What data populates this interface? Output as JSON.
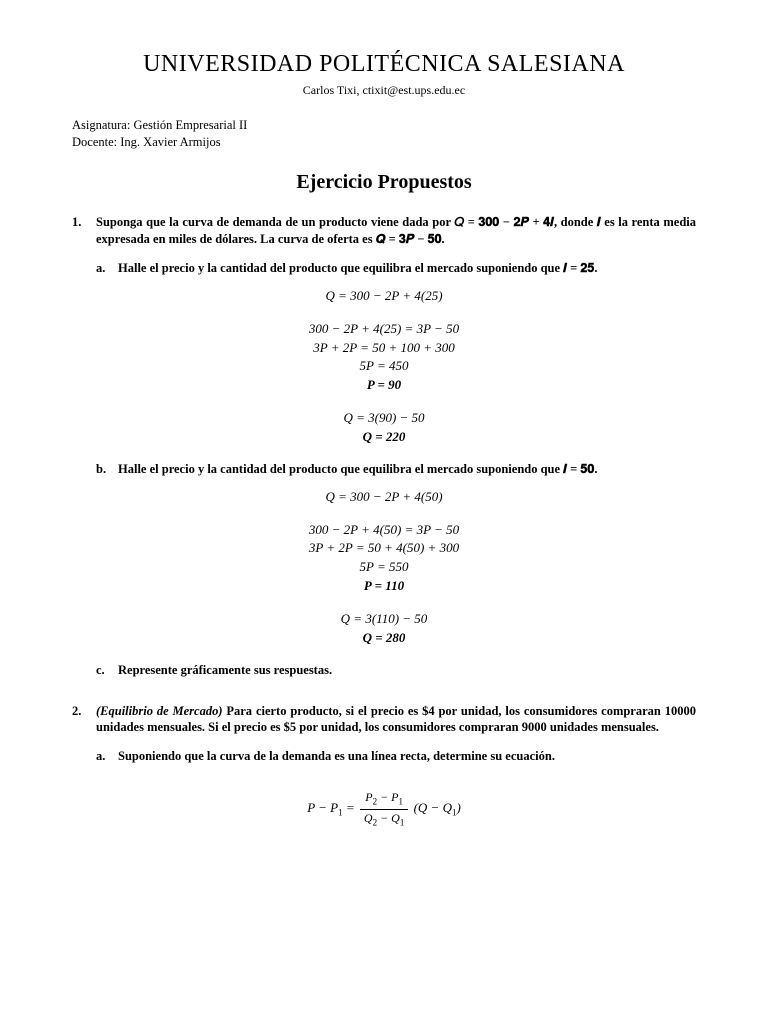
{
  "header": {
    "university": "UNIVERSIDAD POLITÉCNICA SALESIANA",
    "author": "Carlos Tixi, ctixit@est.ups.edu.ec",
    "subject_label": "Asignatura:",
    "subject": "Gestión Empresarial II",
    "teacher_label": "Docente:",
    "teacher": "Ing. Xavier Armijos"
  },
  "title": "Ejercicio Propuestos",
  "problems": [
    {
      "number": "1.",
      "text_html": "Suponga que la curva de demanda de un producto viene dada por 𝑄 = 𝟑𝟎𝟎 − 𝟐𝑷 + 𝟒𝑰, donde 𝑰 es la renta media expresada en miles de dólares. La curva de oferta es 𝑸 = 𝟑𝑷 − 𝟓𝟎.",
      "subs": [
        {
          "letter": "a.",
          "text_html": "Halle el precio y la cantidad del producto que equilibra el mercado suponiendo que 𝑰 = 𝟐𝟓.",
          "math": [
            [
              "Q = 300 − 2P + 4(25)"
            ],
            [
              "300 − 2P + 4(25) = 3P − 50",
              "3P + 2P = 50 + 100 + 300",
              "5P = 450",
              "<b>P = 90</b>"
            ],
            [
              "Q = 3(90) − 50",
              "<b>Q = 220</b>"
            ]
          ]
        },
        {
          "letter": "b.",
          "text_html": "Halle el precio y la cantidad del producto que equilibra el mercado suponiendo que 𝑰 = 𝟓𝟎.",
          "math": [
            [
              "Q = 300 − 2P + 4(50)"
            ],
            [
              "300 − 2P + 4(50) = 3P − 50",
              "3P + 2P = 50 + 4(50) + 300",
              "5P = 550",
              "<b>P = 110</b>"
            ],
            [
              "Q = 3(110) − 50",
              "<b>Q = 280</b>"
            ]
          ]
        },
        {
          "letter": "c.",
          "text_html": "Represente gráficamente sus respuestas.",
          "math": []
        }
      ]
    },
    {
      "number": "2.",
      "text_html": "<span class=\"italic-label\">(Equilibrio de Mercado)</span> Para cierto producto, si el precio es $4 por unidad, los consumidores compraran 10000 unidades mensuales. Si el precio es $5 por unidad, los consumidores compraran 9000 unidades mensuales.",
      "subs": [
        {
          "letter": "a.",
          "text_html": "Suponiendo que la curva de la demanda es una línea recta, determine su ecuación.",
          "math_frac": {
            "left": "P − P",
            "left_sub": "1",
            "num": "P₂ − P₁",
            "den": "Q₂ − Q₁",
            "right": "(Q − Q",
            "right_sub": "1",
            "right_close": ")"
          }
        }
      ]
    }
  ],
  "colors": {
    "text": "#000000",
    "background": "#ffffff"
  },
  "typography": {
    "body_font": "Times New Roman",
    "title_size_pt": 24,
    "doc_title_size_pt": 20,
    "body_size_pt": 13
  }
}
